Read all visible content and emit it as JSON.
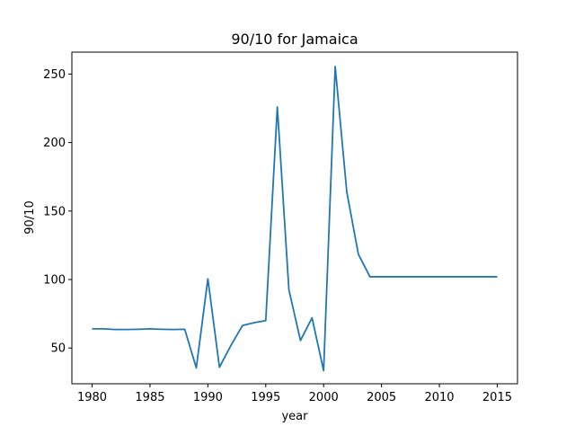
{
  "chart_data": {
    "type": "line",
    "title": "90/10 for Jamaica",
    "xlabel": "year",
    "ylabel": "90/10",
    "xlim": [
      1978.25,
      2016.75
    ],
    "ylim": [
      23.9,
      266.0
    ],
    "xticks": [
      1980,
      1985,
      1990,
      1995,
      2000,
      2005,
      2010,
      2015
    ],
    "yticks": [
      50,
      100,
      150,
      200,
      250
    ],
    "grid": false,
    "line_color": "#1f77b4",
    "series": [
      {
        "x": [
          1980,
          1981,
          1982,
          1983,
          1984,
          1985,
          1986,
          1987,
          1988,
          1989,
          1990,
          1991,
          1992,
          1993,
          1994,
          1995,
          1996,
          1997,
          1998,
          1999,
          2000,
          2001,
          2002,
          2003,
          2004,
          2005,
          2006,
          2007,
          2008,
          2009,
          2010,
          2011,
          2012,
          2013,
          2014,
          2015
        ],
        "values": [
          64,
          64,
          63.5,
          63.5,
          63.7,
          64,
          63.7,
          63.5,
          63.7,
          35.5,
          100.5,
          36,
          52,
          66.5,
          68.5,
          70,
          226,
          92.5,
          55.5,
          72,
          33.5,
          255.5,
          164,
          118.5,
          102,
          102,
          102,
          102,
          102,
          102,
          102,
          102,
          102,
          102,
          102,
          102
        ]
      }
    ]
  }
}
